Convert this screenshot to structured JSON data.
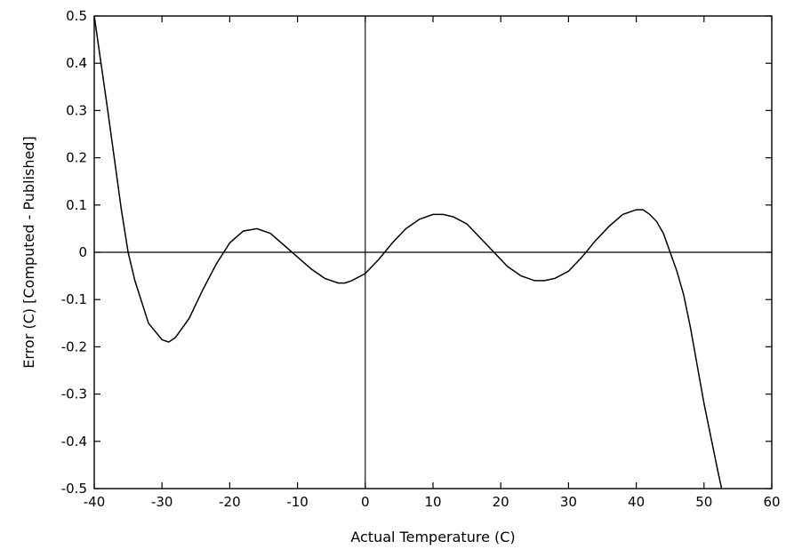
{
  "chart_data": {
    "type": "line",
    "title": "",
    "xlabel": "Actual Temperature (C)",
    "ylabel": "Error (C) [Computed - Published]",
    "xlim": [
      -40,
      60
    ],
    "ylim": [
      -0.5,
      0.5
    ],
    "grid": false,
    "legend": "none",
    "x_ticks": [
      -40,
      -30,
      -20,
      -10,
      0,
      10,
      20,
      30,
      40,
      50,
      60
    ],
    "y_ticks": [
      -0.5,
      -0.4,
      -0.3,
      -0.2,
      -0.1,
      0,
      0.1,
      0.2,
      0.3,
      0.4,
      0.5
    ],
    "x_tick_labels": [
      "-40",
      "-30",
      "-20",
      "-10",
      "0",
      "10",
      "20",
      "30",
      "40",
      "50",
      "60"
    ],
    "y_tick_labels": [
      "-0.5",
      "-0.4",
      "-0.3",
      "-0.2",
      "-0.1",
      "0",
      "0.1",
      "0.2",
      "0.3",
      "0.4",
      "0.5"
    ],
    "reference_lines": {
      "y0": 0,
      "x0": 0
    },
    "series": [
      {
        "x": [
          -40,
          -38,
          -36,
          -35,
          -34,
          -32,
          -30,
          -29,
          -28,
          -26,
          -24,
          -22,
          -20,
          -18,
          -16,
          -14,
          -12,
          -10,
          -8,
          -6,
          -4,
          -3,
          -2,
          0,
          2,
          4,
          6,
          8,
          10,
          11.5,
          13,
          15,
          17,
          19,
          21,
          23,
          25,
          26.5,
          28,
          30,
          32,
          34,
          36,
          38,
          40,
          41,
          42,
          43,
          44,
          45,
          46,
          47,
          48,
          49,
          50,
          51,
          52,
          52.6
        ],
        "y": [
          0.5,
          0.3,
          0.09,
          0.0,
          -0.06,
          -0.15,
          -0.185,
          -0.19,
          -0.18,
          -0.14,
          -0.08,
          -0.025,
          0.02,
          0.045,
          0.05,
          0.04,
          0.015,
          -0.01,
          -0.035,
          -0.055,
          -0.065,
          -0.065,
          -0.06,
          -0.045,
          -0.015,
          0.02,
          0.05,
          0.07,
          0.08,
          0.08,
          0.075,
          0.06,
          0.03,
          0.0,
          -0.03,
          -0.05,
          -0.06,
          -0.06,
          -0.055,
          -0.04,
          -0.01,
          0.025,
          0.055,
          0.08,
          0.09,
          0.09,
          0.08,
          0.065,
          0.04,
          0.0,
          -0.04,
          -0.09,
          -0.16,
          -0.24,
          -0.32,
          -0.39,
          -0.46,
          -0.5
        ]
      }
    ]
  }
}
